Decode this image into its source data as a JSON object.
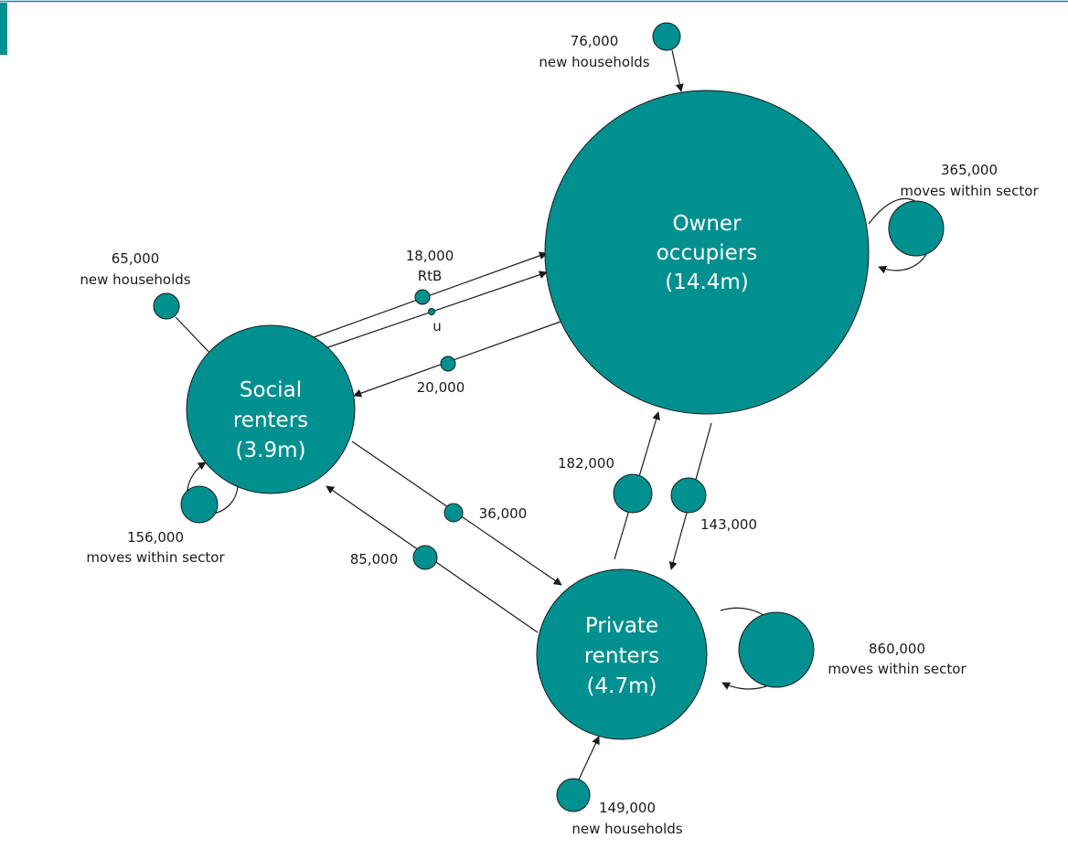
{
  "theme": {
    "teal": "#009090",
    "line": "#1a1a1a",
    "background": "#ffffff",
    "header_rule": "#009090"
  },
  "sectors": {
    "owner": {
      "name_line1": "Owner",
      "name_line2": "occupiers",
      "size": "(14.4m)"
    },
    "social": {
      "name_line1": "Social",
      "name_line2": "renters",
      "size": "(3.9m)"
    },
    "private": {
      "name_line1": "Private",
      "name_line2": "renters",
      "size": "(4.7m)"
    }
  },
  "flows": {
    "new_owner": {
      "value": "76,000",
      "label": "new households"
    },
    "within_owner": {
      "value": "365,000",
      "label": "moves within sector"
    },
    "new_social": {
      "value": "65,000",
      "label": "new households"
    },
    "social_to_owner_rtb": {
      "value": "18,000",
      "label": "RtB"
    },
    "social_to_owner_other": {
      "value": "",
      "label": "u"
    },
    "owner_to_social": {
      "value": "20,000"
    },
    "within_social": {
      "value": "156,000",
      "label": "moves within sector"
    },
    "private_to_owner": {
      "value": "182,000"
    },
    "owner_to_private": {
      "value": "143,000"
    },
    "social_to_private": {
      "value": "36,000"
    },
    "private_to_social": {
      "value": "85,000"
    },
    "within_private": {
      "value": "860,000",
      "label": "moves within sector"
    },
    "new_private": {
      "value": "149,000",
      "label": "new households"
    }
  }
}
